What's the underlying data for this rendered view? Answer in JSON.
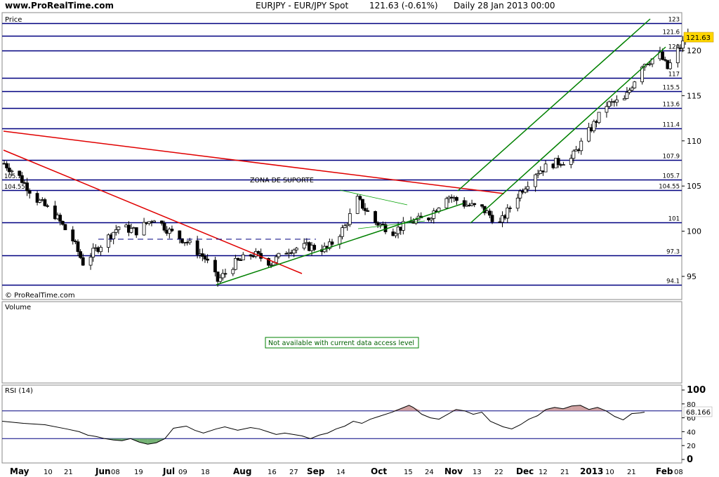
{
  "header": {
    "site": "www.ProRealTime.com",
    "title": "EURJPY - EUR/JPY Spot",
    "quote": "121.63 (-0.61%)",
    "period": "Daily  28 Jan 2013 00:00"
  },
  "price_panel": {
    "label": "Price",
    "footer": "© ProRealTime.com",
    "zone_label": "ZONA DE SUPORTE",
    "current_price": "121.63",
    "left_labels": [
      "105.7",
      "104.55"
    ],
    "yticks": [
      "120",
      "115",
      "110",
      "105",
      "100",
      "95"
    ],
    "levels": [
      {
        "label": "123",
        "value": 123
      },
      {
        "label": "121.6",
        "value": 121.6
      },
      {
        "label": "120",
        "value": 120
      },
      {
        "label": "117",
        "value": 117
      },
      {
        "label": "115.5",
        "value": 115.5
      },
      {
        "label": "113.6",
        "value": 113.6
      },
      {
        "label": "111.4",
        "value": 111.4
      },
      {
        "label": "107.9",
        "value": 107.9
      },
      {
        "label": "105.7",
        "value": 105.7
      },
      {
        "label": "104.55",
        "value": 104.55
      },
      {
        "label": "101",
        "value": 101
      },
      {
        "label": "97.3",
        "value": 97.3
      },
      {
        "label": "94.1",
        "value": 94.1
      }
    ]
  },
  "volume_panel": {
    "label": "Volume",
    "message": "Not available with current data access level"
  },
  "rsi_panel": {
    "label": "RSI (14)",
    "current": "68.166",
    "yticks": [
      "100",
      "80",
      "60",
      "40",
      "20",
      "0"
    ]
  },
  "xaxis": {
    "labels": [
      "May",
      "10",
      "21",
      "Jun",
      "08",
      "19",
      "Jul",
      "09",
      "18",
      "Aug",
      "16",
      "27",
      "Sep",
      "14",
      "Oct",
      "15",
      "24",
      "Nov",
      "13",
      "22",
      "Dec",
      "12",
      "21",
      "2013",
      "10",
      "21",
      "Feb",
      "08"
    ]
  },
  "colors": {
    "level_line": "#000080",
    "trend_red": "#e00000",
    "trend_green": "#008000",
    "rsi_up_fill": "#c99",
    "rsi_down_fill": "#6a6",
    "price_tag": "#ffd700"
  },
  "chart_data": [
    {
      "type": "candlestick",
      "title": "EURJPY - EUR/JPY Spot",
      "ylim": [
        93,
        124
      ],
      "x_range": [
        "2012-05-01",
        "2013-02-08"
      ],
      "last_close": 121.63,
      "close_path": [
        [
          "2012-05-01",
          107.5
        ],
        [
          "2012-05-07",
          106.0
        ],
        [
          "2012-05-14",
          103.5
        ],
        [
          "2012-05-21",
          101.8
        ],
        [
          "2012-05-28",
          99.0
        ],
        [
          "2012-06-01",
          96.5
        ],
        [
          "2012-06-08",
          98.5
        ],
        [
          "2012-06-15",
          100.5
        ],
        [
          "2012-06-22",
          100.0
        ],
        [
          "2012-06-29",
          101.5
        ],
        [
          "2012-07-05",
          100.0
        ],
        [
          "2012-07-12",
          98.8
        ],
        [
          "2012-07-19",
          97.0
        ],
        [
          "2012-07-24",
          94.5
        ],
        [
          "2012-07-31",
          96.5
        ],
        [
          "2012-08-07",
          97.5
        ],
        [
          "2012-08-14",
          96.5
        ],
        [
          "2012-08-21",
          98.0
        ],
        [
          "2012-08-28",
          98.3
        ],
        [
          "2012-09-05",
          98.0
        ],
        [
          "2012-09-12",
          100.5
        ],
        [
          "2012-09-17",
          103.5
        ],
        [
          "2012-09-24",
          101.0
        ],
        [
          "2012-10-01",
          100.0
        ],
        [
          "2012-10-08",
          101.0
        ],
        [
          "2012-10-15",
          101.5
        ],
        [
          "2012-10-22",
          104.0
        ],
        [
          "2012-10-29",
          103.0
        ],
        [
          "2012-11-05",
          102.5
        ],
        [
          "2012-11-12",
          100.8
        ],
        [
          "2012-11-19",
          104.0
        ],
        [
          "2012-11-26",
          106.5
        ],
        [
          "2012-12-03",
          107.5
        ],
        [
          "2012-12-10",
          108.0
        ],
        [
          "2012-12-17",
          111.0
        ],
        [
          "2012-12-24",
          114.0
        ],
        [
          "2012-12-31",
          114.5
        ],
        [
          "2013-01-07",
          118.5
        ],
        [
          "2013-01-14",
          119.5
        ],
        [
          "2013-01-17",
          118.0
        ],
        [
          "2013-01-21",
          120.0
        ],
        [
          "2013-01-25",
          121.63
        ]
      ]
    },
    {
      "type": "line",
      "title": "RSI (14)",
      "ylim": [
        0,
        100
      ],
      "last_value": 68.166,
      "values": [
        [
          0,
          55
        ],
        [
          5,
          52
        ],
        [
          10,
          50
        ],
        [
          15,
          44
        ],
        [
          18,
          40
        ],
        [
          20,
          35
        ],
        [
          22,
          33
        ],
        [
          24,
          30
        ],
        [
          26,
          28
        ],
        [
          28,
          27
        ],
        [
          30,
          30
        ],
        [
          32,
          25
        ],
        [
          34,
          22
        ],
        [
          36,
          24
        ],
        [
          38,
          30
        ],
        [
          40,
          45
        ],
        [
          43,
          48
        ],
        [
          45,
          42
        ],
        [
          47,
          38
        ],
        [
          50,
          44
        ],
        [
          52,
          47
        ],
        [
          55,
          42
        ],
        [
          58,
          46
        ],
        [
          60,
          44
        ],
        [
          62,
          40
        ],
        [
          64,
          36
        ],
        [
          66,
          38
        ],
        [
          70,
          34
        ],
        [
          72,
          30
        ],
        [
          74,
          35
        ],
        [
          76,
          38
        ],
        [
          78,
          44
        ],
        [
          80,
          48
        ],
        [
          82,
          55
        ],
        [
          84,
          52
        ],
        [
          86,
          58
        ],
        [
          88,
          62
        ],
        [
          91,
          68
        ],
        [
          93,
          73
        ],
        [
          95,
          78
        ],
        [
          96,
          75
        ],
        [
          98,
          65
        ],
        [
          100,
          60
        ],
        [
          102,
          58
        ],
        [
          104,
          65
        ],
        [
          106,
          72
        ],
        [
          108,
          70
        ],
        [
          110,
          65
        ],
        [
          112,
          68
        ],
        [
          114,
          55
        ],
        [
          117,
          47
        ],
        [
          119,
          44
        ],
        [
          121,
          50
        ],
        [
          123,
          58
        ],
        [
          125,
          63
        ],
        [
          127,
          72
        ],
        [
          129,
          75
        ],
        [
          131,
          73
        ],
        [
          133,
          77
        ],
        [
          135,
          78
        ],
        [
          137,
          72
        ],
        [
          139,
          75
        ],
        [
          141,
          70
        ],
        [
          143,
          62
        ],
        [
          145,
          57
        ],
        [
          147,
          66
        ],
        [
          149,
          67
        ],
        [
          150,
          68.166
        ]
      ]
    }
  ]
}
